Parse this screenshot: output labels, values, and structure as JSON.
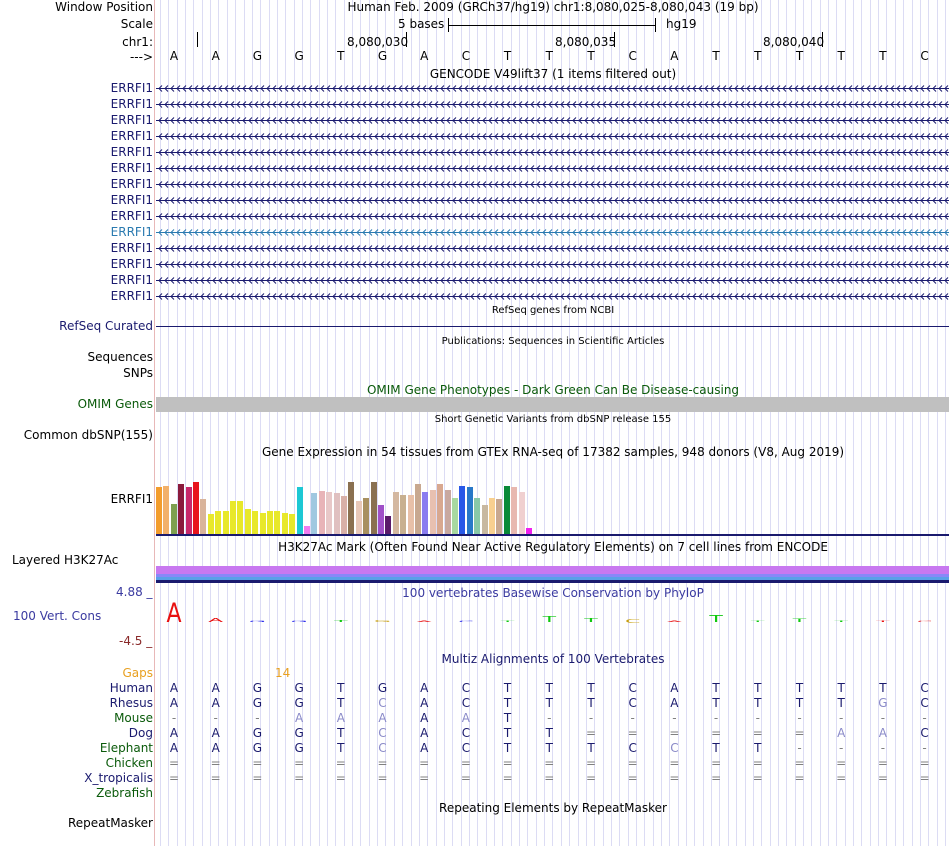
{
  "header": {
    "window_position_label": "Window Position",
    "window_position_value": "Human Feb. 2009 (GRCh37/hg19)   chr1:8,080,025-8,080,043 (19 bp)",
    "scale_label": "Scale",
    "scale_text": "5 bases",
    "scale_assembly": "hg19",
    "chrom_label": "chr1:",
    "strand_label": "--->",
    "ticks": [
      "8,080,030",
      "8,080,035",
      "8,080,040"
    ]
  },
  "sequence": [
    "A",
    "A",
    "G",
    "G",
    "T",
    "G",
    "A",
    "C",
    "T",
    "T",
    "T",
    "C",
    "A",
    "T",
    "T",
    "T",
    "T",
    "T",
    "C"
  ],
  "gencode": {
    "title": "GENCODE V49lift37 (1 items filtered out)",
    "genes": [
      "ERRFI1",
      "ERRFI1",
      "ERRFI1",
      "ERRFI1",
      "ERRFI1",
      "ERRFI1",
      "ERRFI1",
      "ERRFI1",
      "ERRFI1",
      "ERRFI1",
      "ERRFI1",
      "ERRFI1",
      "ERRFI1",
      "ERRFI1"
    ],
    "highlight_index": 9
  },
  "refseq": {
    "title": "RefSeq genes from NCBI",
    "label": "RefSeq Curated"
  },
  "publications": {
    "title": "Publications: Sequences in Scientific Articles",
    "label": "Sequences"
  },
  "snps": {
    "label": "SNPs"
  },
  "omim": {
    "title": "OMIM Gene Phenotypes - Dark Green Can Be Disease-causing",
    "label": "OMIM Genes"
  },
  "dbsnp": {
    "title": "Short Genetic Variants from dbSNP release 155",
    "label": "Common dbSNP(155)"
  },
  "gtex": {
    "title": "Gene Expression in 54 tissues from GTEx RNA-seq of 17382 samples, 948 donors (V8, Aug 2019)",
    "label": "ERRFI1",
    "bars": [
      {
        "v": 0.62,
        "c": "#f39c2c"
      },
      {
        "v": 0.64,
        "c": "#f2b06a"
      },
      {
        "v": 0.4,
        "c": "#7ea04f"
      },
      {
        "v": 0.66,
        "c": "#8a1a3c"
      },
      {
        "v": 0.62,
        "c": "#c8286a"
      },
      {
        "v": 0.69,
        "c": "#e8141c"
      },
      {
        "v": 0.46,
        "c": "#d9b49a"
      },
      {
        "v": 0.26,
        "c": "#e8e82a"
      },
      {
        "v": 0.3,
        "c": "#e8e82a"
      },
      {
        "v": 0.3,
        "c": "#e8e82a"
      },
      {
        "v": 0.44,
        "c": "#e8e82a"
      },
      {
        "v": 0.44,
        "c": "#e8e82a"
      },
      {
        "v": 0.33,
        "c": "#e8e82a"
      },
      {
        "v": 0.3,
        "c": "#e8e82a"
      },
      {
        "v": 0.28,
        "c": "#e8e82a"
      },
      {
        "v": 0.3,
        "c": "#e8e82a"
      },
      {
        "v": 0.3,
        "c": "#e8e82a"
      },
      {
        "v": 0.28,
        "c": "#e8e82a"
      },
      {
        "v": 0.26,
        "c": "#e8e82a"
      },
      {
        "v": 0.62,
        "c": "#1cc8d4"
      },
      {
        "v": 0.1,
        "c": "#f07cf0"
      },
      {
        "v": 0.55,
        "c": "#a0c8e0"
      },
      {
        "v": 0.57,
        "c": "#e8b4b8"
      },
      {
        "v": 0.56,
        "c": "#e8c8c8"
      },
      {
        "v": 0.55,
        "c": "#e0c0c0"
      },
      {
        "v": 0.5,
        "c": "#d8b0a8"
      },
      {
        "v": 0.69,
        "c": "#8a7050"
      },
      {
        "v": 0.44,
        "c": "#e8c8b8"
      },
      {
        "v": 0.48,
        "c": "#a89060"
      },
      {
        "v": 0.69,
        "c": "#8a7050"
      },
      {
        "v": 0.38,
        "c": "#a050c8"
      },
      {
        "v": 0.24,
        "c": "#5a1a6a"
      },
      {
        "v": 0.56,
        "c": "#d4b8a0"
      },
      {
        "v": 0.52,
        "c": "#c8b090"
      },
      {
        "v": 0.52,
        "c": "#e8c0a8"
      },
      {
        "v": 0.66,
        "c": "#c8a890"
      },
      {
        "v": 0.56,
        "c": "#8a7cf0"
      },
      {
        "v": 0.58,
        "c": "#e8c0b0"
      },
      {
        "v": 0.66,
        "c": "#d8a890"
      },
      {
        "v": 0.58,
        "c": "#c8a8a0"
      },
      {
        "v": 0.48,
        "c": "#a8d8a0"
      },
      {
        "v": 0.64,
        "c": "#2858e8"
      },
      {
        "v": 0.62,
        "c": "#2878c8"
      },
      {
        "v": 0.48,
        "c": "#88c8a8"
      },
      {
        "v": 0.38,
        "c": "#c8b8a0"
      },
      {
        "v": 0.48,
        "c": "#f8d090"
      },
      {
        "v": 0.46,
        "c": "#c8a890"
      },
      {
        "v": 0.64,
        "c": "#0a8a38"
      },
      {
        "v": 0.62,
        "c": "#e8b8b0"
      },
      {
        "v": 0.56,
        "c": "#f0d0d0"
      },
      {
        "v": 0.08,
        "c": "#f020f0"
      }
    ]
  },
  "h3k27ac": {
    "title": "H3K27Ac Mark (Often Found Near Active Regulatory Elements) on 7 cell lines from ENCODE",
    "label": "Layered H3K27Ac"
  },
  "phylop": {
    "title": "100 vertebrates Basewise Conservation by PhyloP",
    "label": "100 Vert. Cons",
    "ymax": "4.88 _",
    "ymin": "-4.5 _",
    "values": [
      3.2,
      0.6,
      0.2,
      0.1,
      0.3,
      -0.3,
      -0.1,
      0.0,
      0.0,
      1.0,
      0.6,
      -0.6,
      0.0,
      1.2,
      0.0,
      0.5,
      0.0,
      -0.1,
      -0.2
    ],
    "colors": [
      "#e81010",
      "#e81010",
      "#1010e8",
      "#1010e8",
      "#10c810",
      "#c8a010",
      "#e81010",
      "#1010e8",
      "#10c810",
      "#10c810",
      "#10c810",
      "#c8a010",
      "#e81010",
      "#10c810",
      "#10c810",
      "#10c810",
      "#10c810",
      "#e81010",
      "#e81010"
    ]
  },
  "multiz": {
    "title": "Multiz Alignments of 100 Vertebrates",
    "gaps_label": "Gaps",
    "gap_count": "14",
    "species": [
      {
        "name": "Human",
        "color": "#1a1a6e",
        "seq": [
          "A",
          "A",
          "G",
          "G",
          "T",
          "G",
          "A",
          "C",
          "T",
          "T",
          "T",
          "C",
          "A",
          "T",
          "T",
          "T",
          "T",
          "T",
          "C"
        ]
      },
      {
        "name": "Rhesus",
        "color": "#1a1a6e",
        "seq": [
          "A",
          "A",
          "G",
          "G",
          "T",
          "C",
          "A",
          "C",
          "T",
          "T",
          "T",
          "C",
          "A",
          "T",
          "T",
          "T",
          "T",
          "G",
          "C"
        ]
      },
      {
        "name": "Mouse",
        "color": "#0a5a0a",
        "seq": [
          "-",
          "-",
          "-",
          "A",
          "A",
          "A",
          "A",
          "A",
          "T",
          "-",
          "-",
          "-",
          "-",
          "-",
          "-",
          "-",
          "-",
          "-",
          "-"
        ]
      },
      {
        "name": "Dog",
        "color": "#1a1a6e",
        "seq": [
          "A",
          "A",
          "G",
          "G",
          "T",
          "C",
          "A",
          "C",
          "T",
          "T",
          "=",
          "=",
          "=",
          "=",
          "=",
          "=",
          "A",
          "A",
          "C"
        ]
      },
      {
        "name": "Elephant",
        "color": "#0a5a0a",
        "seq": [
          "A",
          "A",
          "G",
          "G",
          "T",
          "C",
          "A",
          "C",
          "T",
          "T",
          "T",
          "C",
          "C",
          "T",
          "T",
          "-",
          "-",
          "-",
          "-"
        ]
      },
      {
        "name": "Chicken",
        "color": "#0a5a0a",
        "seq": [
          "=",
          "=",
          "=",
          "=",
          "=",
          "=",
          "=",
          "=",
          "=",
          "=",
          "=",
          "=",
          "=",
          "=",
          "=",
          "=",
          "=",
          "=",
          "="
        ]
      },
      {
        "name": "X_tropicalis",
        "color": "#1a1a6e",
        "seq": [
          "=",
          "=",
          "=",
          "=",
          "=",
          "=",
          "=",
          "=",
          "=",
          "=",
          "=",
          "=",
          "=",
          "=",
          "=",
          "=",
          "=",
          "=",
          "="
        ]
      },
      {
        "name": "Zebrafish",
        "color": "#0a5a0a",
        "seq": [
          "",
          "",
          "",
          "",
          "",
          "",
          "",
          "",
          "",
          "",
          "",
          "",
          "",
          "",
          "",
          "",
          "",
          "",
          ""
        ]
      }
    ]
  },
  "repeatmasker": {
    "title": "Repeating Elements by RepeatMasker",
    "label": "RepeatMasker"
  }
}
